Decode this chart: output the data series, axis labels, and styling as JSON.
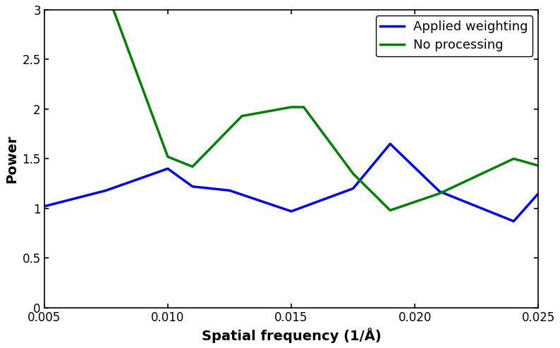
{
  "blue_x": [
    0.005,
    0.0075,
    0.01,
    0.011,
    0.0125,
    0.015,
    0.0175,
    0.019,
    0.021,
    0.024,
    0.025
  ],
  "blue_y": [
    1.02,
    1.18,
    1.4,
    1.22,
    1.18,
    0.97,
    1.2,
    1.65,
    1.17,
    0.87,
    1.15
  ],
  "green_x": [
    0.0078,
    0.01,
    0.011,
    0.013,
    0.015,
    0.0155,
    0.0175,
    0.019,
    0.021,
    0.024,
    0.025
  ],
  "green_y": [
    3.0,
    1.52,
    1.42,
    1.93,
    2.02,
    2.02,
    1.35,
    0.98,
    1.15,
    1.5,
    1.43
  ],
  "blue_color": "#0000ff",
  "green_color": "#008000",
  "xlabel": "Spatial frequency (1/Å)",
  "ylabel": "Power",
  "legend_labels": [
    "Applied weighting",
    "No processing"
  ],
  "xlim": [
    0.005,
    0.025
  ],
  "ylim": [
    0,
    3.0
  ],
  "xticks": [
    0.005,
    0.01,
    0.015,
    0.02,
    0.025
  ],
  "yticks": [
    0,
    0.5,
    1.0,
    1.5,
    2.0,
    2.5,
    3.0
  ],
  "linewidth": 2.5
}
